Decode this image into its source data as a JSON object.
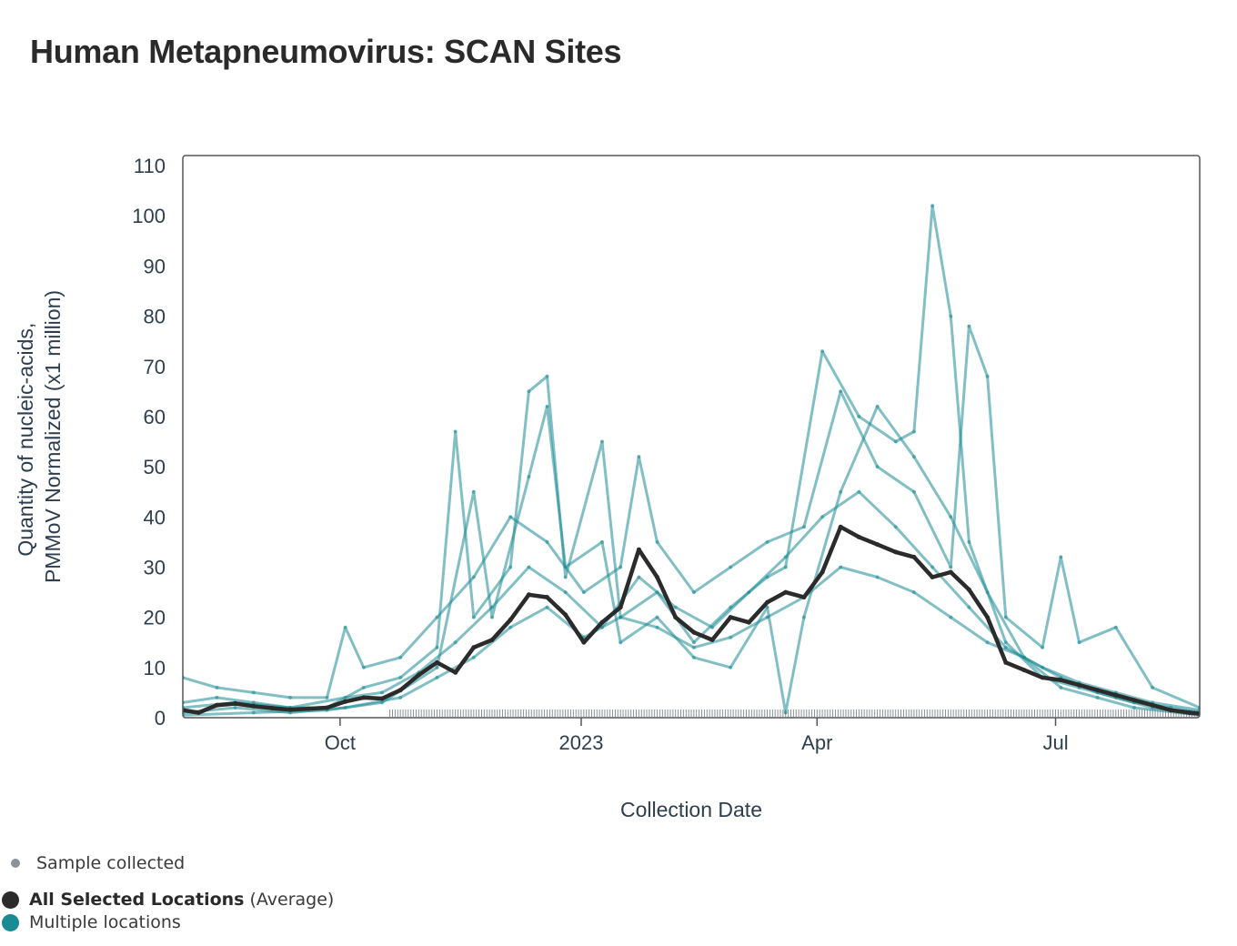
{
  "page": {
    "title": "Human Metapneumovirus: SCAN Sites"
  },
  "legend": {
    "sample_label": "Sample collected",
    "sample_color": "#8a929a",
    "avg_label": "All Selected Locations",
    "avg_suffix": "(Average)",
    "avg_color": "#2b2b2b",
    "multi_label": "Multiple locations",
    "multi_color": "#1a8a94"
  },
  "chart_data": {
    "type": "line",
    "title": "Human Metapneumovirus: SCAN Sites",
    "xlabel": "Collection Date",
    "ylabel": "Quantity of nucleic-acids, PMMoV Normalized (x1 million)",
    "ylabel_lines": [
      "Quantity of nucleic-acids,",
      "PMMoV Normalized (x1 million)"
    ],
    "x_range": [
      "2022-08-02",
      "2023-08-25"
    ],
    "ylim": [
      0,
      112
    ],
    "yticks": [
      0,
      10,
      20,
      30,
      40,
      50,
      60,
      70,
      80,
      90,
      100,
      110
    ],
    "xticks": [
      {
        "date": "2022-10-01",
        "label": "Oct"
      },
      {
        "date": "2023-01-01",
        "label": "2023"
      },
      {
        "date": "2023-04-01",
        "label": "Apr"
      },
      {
        "date": "2023-07-01",
        "label": "Jul"
      }
    ],
    "grid": false,
    "legend_position": "bottom-left",
    "sample_marks": {
      "name": "Sample collected",
      "start": "2022-10-20",
      "end": "2023-08-25",
      "color": "#8a929a"
    },
    "series": [
      {
        "name": "All Selected Locations (Average)",
        "color": "#2b2b2b",
        "points": [
          [
            "2022-08-02",
            1.5
          ],
          [
            "2022-08-08",
            1.0
          ],
          [
            "2022-08-15",
            2.5
          ],
          [
            "2022-08-22",
            2.8
          ],
          [
            "2022-08-29",
            2.3
          ],
          [
            "2022-09-05",
            1.9
          ],
          [
            "2022-09-12",
            1.6
          ],
          [
            "2022-09-19",
            1.8
          ],
          [
            "2022-09-26",
            2.0
          ],
          [
            "2022-10-03",
            3.2
          ],
          [
            "2022-10-10",
            4.0
          ],
          [
            "2022-10-17",
            3.8
          ],
          [
            "2022-10-24",
            5.5
          ],
          [
            "2022-10-31",
            8.5
          ],
          [
            "2022-11-07",
            11.0
          ],
          [
            "2022-11-14",
            9.0
          ],
          [
            "2022-11-21",
            14.0
          ],
          [
            "2022-11-28",
            15.5
          ],
          [
            "2022-12-05",
            19.5
          ],
          [
            "2022-12-12",
            24.5
          ],
          [
            "2022-12-19",
            24.0
          ],
          [
            "2022-12-26",
            20.5
          ],
          [
            "2023-01-02",
            15.0
          ],
          [
            "2023-01-09",
            19.0
          ],
          [
            "2023-01-16",
            22.0
          ],
          [
            "2023-01-23",
            33.5
          ],
          [
            "2023-01-30",
            28.0
          ],
          [
            "2023-02-06",
            20.0
          ],
          [
            "2023-02-13",
            17.0
          ],
          [
            "2023-02-20",
            15.5
          ],
          [
            "2023-02-27",
            20.0
          ],
          [
            "2023-03-06",
            19.0
          ],
          [
            "2023-03-13",
            23.0
          ],
          [
            "2023-03-20",
            25.0
          ],
          [
            "2023-03-27",
            24.0
          ],
          [
            "2023-04-03",
            29.0
          ],
          [
            "2023-04-10",
            38.0
          ],
          [
            "2023-04-17",
            36.0
          ],
          [
            "2023-04-24",
            34.5
          ],
          [
            "2023-05-01",
            33.0
          ],
          [
            "2023-05-08",
            32.0
          ],
          [
            "2023-05-15",
            28.0
          ],
          [
            "2023-05-22",
            29.0
          ],
          [
            "2023-05-29",
            25.5
          ],
          [
            "2023-06-05",
            20.0
          ],
          [
            "2023-06-12",
            11.0
          ],
          [
            "2023-06-19",
            9.5
          ],
          [
            "2023-06-26",
            8.0
          ],
          [
            "2023-07-03",
            7.5
          ],
          [
            "2023-07-10",
            6.5
          ],
          [
            "2023-07-17",
            5.5
          ],
          [
            "2023-07-24",
            4.5
          ],
          [
            "2023-07-31",
            3.5
          ],
          [
            "2023-08-07",
            2.5
          ],
          [
            "2023-08-14",
            1.5
          ],
          [
            "2023-08-21",
            1.0
          ],
          [
            "2023-08-25",
            0.8
          ]
        ]
      },
      {
        "name": "Multiple locations",
        "color": "#1a8a94",
        "lines": [
          [
            [
              "2022-08-02",
              3
            ],
            [
              "2022-08-15",
              4
            ],
            [
              "2022-08-29",
              3
            ],
            [
              "2022-09-12",
              2
            ],
            [
              "2022-09-26",
              2
            ],
            [
              "2022-10-10",
              6
            ],
            [
              "2022-10-24",
              8
            ],
            [
              "2022-11-07",
              14
            ],
            [
              "2022-11-14",
              57
            ],
            [
              "2022-11-21",
              20
            ],
            [
              "2022-12-05",
              30
            ],
            [
              "2022-12-12",
              65
            ],
            [
              "2022-12-19",
              68
            ],
            [
              "2022-12-26",
              28
            ],
            [
              "2023-01-09",
              55
            ],
            [
              "2023-01-16",
              20
            ],
            [
              "2023-01-30",
              25
            ],
            [
              "2023-02-13",
              15
            ],
            [
              "2023-02-27",
              22
            ],
            [
              "2023-03-13",
              28
            ],
            [
              "2023-03-20",
              30
            ],
            [
              "2023-04-03",
              73
            ],
            [
              "2023-04-17",
              60
            ],
            [
              "2023-05-01",
              55
            ],
            [
              "2023-05-08",
              57
            ],
            [
              "2023-05-15",
              102
            ],
            [
              "2023-05-22",
              80
            ],
            [
              "2023-05-29",
              35
            ],
            [
              "2023-06-12",
              15
            ],
            [
              "2023-06-26",
              8
            ],
            [
              "2023-07-10",
              6
            ],
            [
              "2023-07-24",
              4
            ],
            [
              "2023-08-07",
              2
            ],
            [
              "2023-08-25",
              1
            ]
          ],
          [
            [
              "2022-08-02",
              8
            ],
            [
              "2022-08-15",
              6
            ],
            [
              "2022-08-29",
              5
            ],
            [
              "2022-09-12",
              4
            ],
            [
              "2022-09-26",
              4
            ],
            [
              "2022-10-03",
              18
            ],
            [
              "2022-10-10",
              10
            ],
            [
              "2022-10-24",
              12
            ],
            [
              "2022-11-07",
              20
            ],
            [
              "2022-11-21",
              28
            ],
            [
              "2022-12-05",
              40
            ],
            [
              "2022-12-19",
              35
            ],
            [
              "2023-01-02",
              25
            ],
            [
              "2023-01-16",
              30
            ],
            [
              "2023-01-23",
              52
            ],
            [
              "2023-01-30",
              35
            ],
            [
              "2023-02-13",
              25
            ],
            [
              "2023-02-27",
              30
            ],
            [
              "2023-03-13",
              35
            ],
            [
              "2023-03-27",
              38
            ],
            [
              "2023-04-10",
              65
            ],
            [
              "2023-04-24",
              50
            ],
            [
              "2023-05-08",
              45
            ],
            [
              "2023-05-22",
              30
            ],
            [
              "2023-05-29",
              78
            ],
            [
              "2023-06-05",
              68
            ],
            [
              "2023-06-12",
              20
            ],
            [
              "2023-06-26",
              14
            ],
            [
              "2023-07-03",
              32
            ],
            [
              "2023-07-10",
              15
            ],
            [
              "2023-07-24",
              18
            ],
            [
              "2023-08-07",
              6
            ],
            [
              "2023-08-25",
              2
            ]
          ],
          [
            [
              "2022-08-02",
              2
            ],
            [
              "2022-08-22",
              3
            ],
            [
              "2022-09-12",
              2
            ],
            [
              "2022-10-03",
              4
            ],
            [
              "2022-10-17",
              5
            ],
            [
              "2022-10-31",
              9
            ],
            [
              "2022-11-14",
              15
            ],
            [
              "2022-11-28",
              22
            ],
            [
              "2022-12-12",
              30
            ],
            [
              "2022-12-26",
              25
            ],
            [
              "2023-01-09",
              18
            ],
            [
              "2023-01-23",
              28
            ],
            [
              "2023-02-06",
              22
            ],
            [
              "2023-02-20",
              18
            ],
            [
              "2023-03-06",
              25
            ],
            [
              "2023-03-20",
              32
            ],
            [
              "2023-04-03",
              40
            ],
            [
              "2023-04-17",
              45
            ],
            [
              "2023-05-01",
              38
            ],
            [
              "2023-05-15",
              30
            ],
            [
              "2023-05-29",
              22
            ],
            [
              "2023-06-12",
              14
            ],
            [
              "2023-06-26",
              10
            ],
            [
              "2023-07-10",
              7
            ],
            [
              "2023-07-24",
              5
            ],
            [
              "2023-08-07",
              3
            ],
            [
              "2023-08-25",
              1.5
            ]
          ],
          [
            [
              "2022-08-02",
              1
            ],
            [
              "2022-08-22",
              2
            ],
            [
              "2022-09-12",
              1
            ],
            [
              "2022-10-03",
              2
            ],
            [
              "2022-10-24",
              4
            ],
            [
              "2022-11-07",
              8
            ],
            [
              "2022-11-21",
              12
            ],
            [
              "2022-12-05",
              18
            ],
            [
              "2022-12-19",
              22
            ],
            [
              "2023-01-02",
              16
            ],
            [
              "2023-01-16",
              20
            ],
            [
              "2023-01-30",
              18
            ],
            [
              "2023-02-13",
              14
            ],
            [
              "2023-02-27",
              16
            ],
            [
              "2023-03-13",
              20
            ],
            [
              "2023-03-27",
              24
            ],
            [
              "2023-04-10",
              30
            ],
            [
              "2023-04-24",
              28
            ],
            [
              "2023-05-08",
              25
            ],
            [
              "2023-05-22",
              20
            ],
            [
              "2023-06-05",
              15
            ],
            [
              "2023-06-19",
              12
            ],
            [
              "2023-07-03",
              8
            ],
            [
              "2023-07-17",
              5
            ],
            [
              "2023-07-31",
              3
            ],
            [
              "2023-08-14",
              2
            ],
            [
              "2023-08-25",
              1
            ]
          ],
          [
            [
              "2022-08-02",
              0.5
            ],
            [
              "2022-08-29",
              1
            ],
            [
              "2022-09-26",
              1.5
            ],
            [
              "2022-10-17",
              3
            ],
            [
              "2022-11-07",
              10
            ],
            [
              "2022-11-21",
              45
            ],
            [
              "2022-11-28",
              20
            ],
            [
              "2022-12-12",
              48
            ],
            [
              "2022-12-19",
              62
            ],
            [
              "2022-12-26",
              30
            ],
            [
              "2023-01-09",
              35
            ],
            [
              "2023-01-16",
              15
            ],
            [
              "2023-01-30",
              20
            ],
            [
              "2023-02-13",
              12
            ],
            [
              "2023-02-27",
              10
            ],
            [
              "2023-03-13",
              22
            ],
            [
              "2023-03-20",
              1
            ],
            [
              "2023-03-27",
              20
            ],
            [
              "2023-04-10",
              45
            ],
            [
              "2023-04-24",
              62
            ],
            [
              "2023-05-08",
              52
            ],
            [
              "2023-05-22",
              40
            ],
            [
              "2023-06-05",
              25
            ],
            [
              "2023-06-19",
              12
            ],
            [
              "2023-07-03",
              6
            ],
            [
              "2023-07-17",
              4
            ],
            [
              "2023-07-31",
              2
            ],
            [
              "2023-08-25",
              0.5
            ]
          ]
        ]
      }
    ]
  }
}
